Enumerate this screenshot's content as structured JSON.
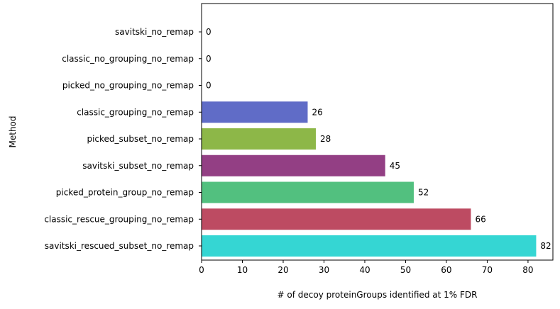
{
  "chart_data": {
    "type": "bar",
    "orientation": "horizontal",
    "title": "",
    "xlabel": "# of decoy proteinGroups identified at 1% FDR",
    "ylabel": "Method",
    "xlim": [
      0,
      86.1
    ],
    "xticks": [
      0,
      10,
      20,
      30,
      40,
      50,
      60,
      70,
      80
    ],
    "grid": false,
    "legend": "none",
    "categories": [
      "savitski_rescued_subset_no_remap",
      "classic_rescue_grouping_no_remap",
      "picked_protein_group_no_remap",
      "savitski_subset_no_remap",
      "picked_subset_no_remap",
      "classic_grouping_no_remap",
      "picked_no_grouping_no_remap",
      "classic_no_grouping_no_remap",
      "savitski_no_remap"
    ],
    "values": [
      82,
      66,
      52,
      45,
      28,
      26,
      0,
      0,
      0
    ],
    "value_labels": [
      "82",
      "66",
      "52",
      "45",
      "28",
      "26",
      "0",
      "0",
      "0"
    ],
    "colors": [
      "#35d6d3",
      "#bd4b62",
      "#52c07f",
      "#933f84",
      "#8db748",
      "#606cc7",
      "#8a8a8a",
      "#8a8a8a",
      "#8a8a8a"
    ]
  }
}
